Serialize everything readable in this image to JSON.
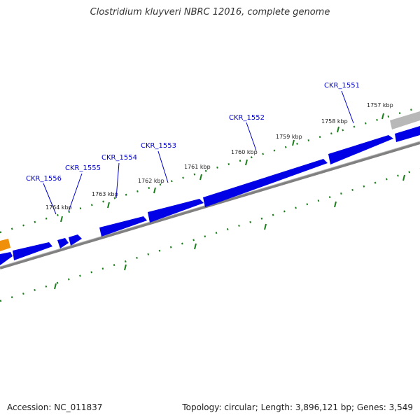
{
  "title": "Clostridium kluyveri NBRC 12016, complete genome",
  "accession": "Accession: NC_011837",
  "summary": "Topology: circular; Length: 3,896,121 bp; Genes: 3,549",
  "colors": {
    "gene": "#0000e6",
    "gene_label": "#0000cc",
    "tick": "#1a7f1a",
    "backbone": "#808080",
    "orange_feature": "#f0900a",
    "grey_feature": "#b8b8b8"
  },
  "scale_labels": [
    "1757 kbp",
    "1758 kbp",
    "1759 kbp",
    "1760 kbp",
    "1761 kbp",
    "1762 kbp",
    "1763 kbp",
    "1764 kbp"
  ],
  "gene_labels": [
    "CKR_1551",
    "CKR_1552",
    "CKR_1553",
    "CKR_1554",
    "CKR_1555",
    "CKR_1556"
  ]
}
